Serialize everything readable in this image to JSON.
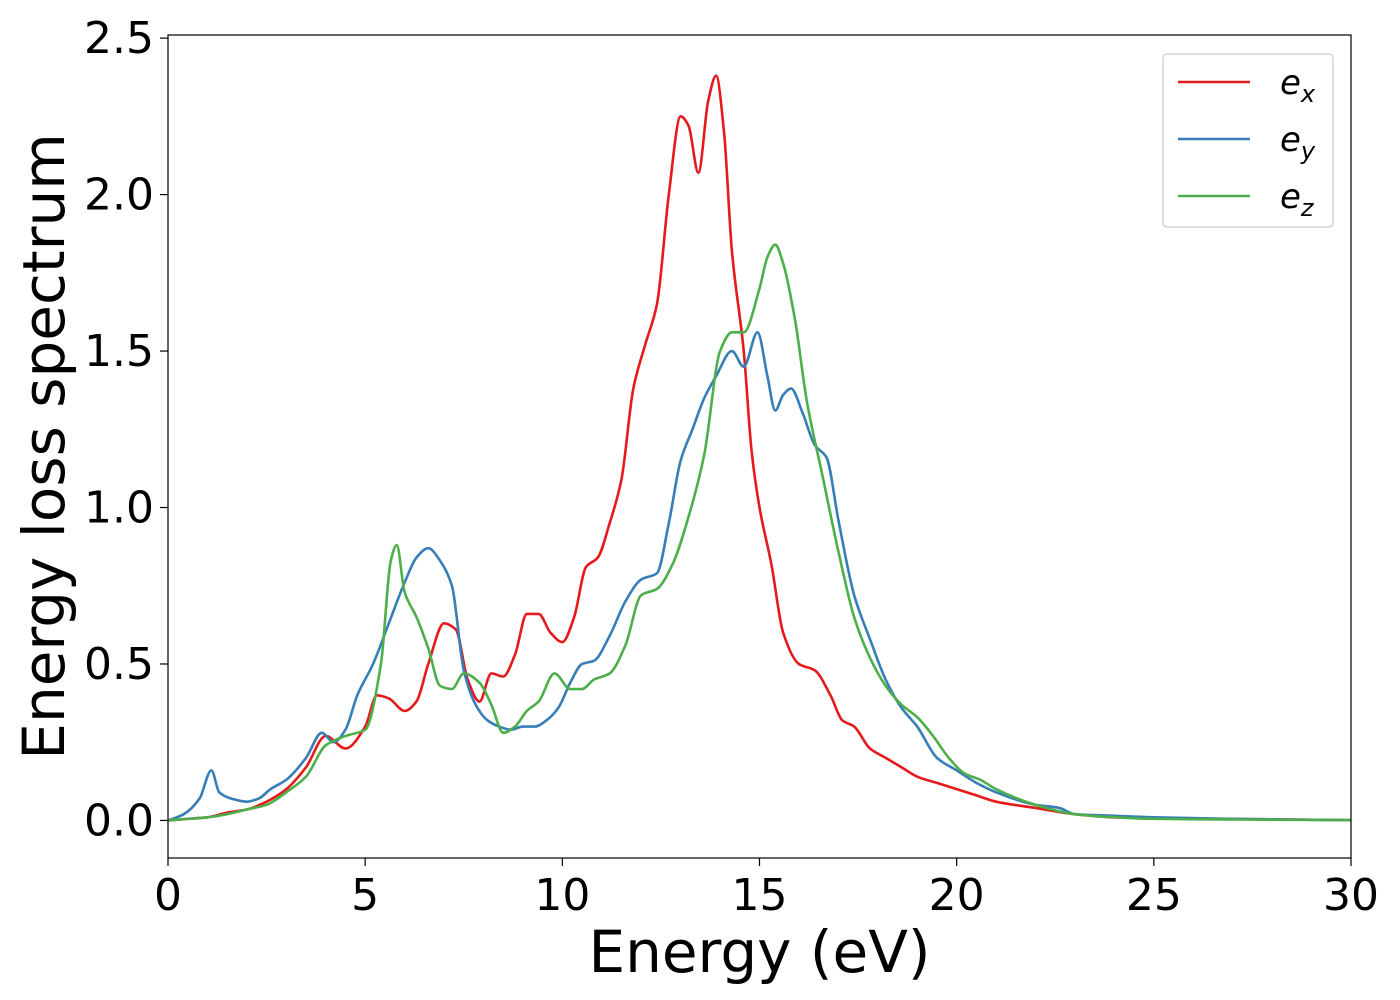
{
  "chart_data": {
    "type": "line",
    "xlabel": "Energy (eV)",
    "ylabel": "Energy loss spectrum",
    "xlim": [
      0,
      30
    ],
    "ylim": [
      -0.12,
      2.51
    ],
    "xticks": [
      "0",
      "5",
      "10",
      "15",
      "20",
      "25",
      "30"
    ],
    "yticks": [
      "0.0",
      "0.5",
      "1.0",
      "1.5",
      "2.0",
      "2.5"
    ],
    "grid": false,
    "legend_position": "top-right",
    "series": [
      {
        "name": "e_x",
        "label_base": "e",
        "label_sub": "x",
        "color": "#e41a1c",
        "x": [
          0,
          0.5,
          1,
          1.5,
          2,
          2.5,
          3,
          3.5,
          4,
          4.5,
          5,
          5.3,
          5.6,
          6,
          6.3,
          6.6,
          7,
          7.3,
          7.6,
          7.9,
          8.2,
          8.5,
          8.8,
          9.1,
          9.4,
          9.7,
          10,
          10.3,
          10.6,
          10.9,
          11.2,
          11.5,
          11.8,
          12.1,
          12.4,
          12.7,
          13,
          13.2,
          13.45,
          13.7,
          13.9,
          14.1,
          14.3,
          14.6,
          14.8,
          15,
          15.3,
          15.6,
          16,
          16.4,
          16.8,
          17.1,
          17.4,
          17.8,
          18.2,
          18.6,
          19,
          19.5,
          20,
          20.5,
          21,
          22,
          23,
          24,
          25,
          27,
          30
        ],
        "values": [
          0,
          0.005,
          0.01,
          0.025,
          0.035,
          0.06,
          0.1,
          0.17,
          0.27,
          0.23,
          0.3,
          0.4,
          0.39,
          0.35,
          0.38,
          0.5,
          0.63,
          0.61,
          0.45,
          0.38,
          0.47,
          0.46,
          0.53,
          0.66,
          0.66,
          0.6,
          0.57,
          0.65,
          0.81,
          0.84,
          0.95,
          1.09,
          1.38,
          1.52,
          1.65,
          2.0,
          2.25,
          2.22,
          2.07,
          2.3,
          2.38,
          2.2,
          1.82,
          1.5,
          1.18,
          1.0,
          0.82,
          0.6,
          0.5,
          0.48,
          0.4,
          0.32,
          0.3,
          0.23,
          0.2,
          0.17,
          0.14,
          0.12,
          0.1,
          0.08,
          0.06,
          0.04,
          0.02,
          0.01,
          0.007,
          0.005,
          0.001
        ]
      },
      {
        "name": "e_y",
        "label_base": "e",
        "label_sub": "y",
        "color": "#377eb8",
        "x": [
          0,
          0.4,
          0.8,
          1.1,
          1.3,
          1.6,
          2,
          2.3,
          2.6,
          3,
          3.5,
          3.9,
          4.2,
          4.5,
          4.8,
          5.2,
          5.6,
          6,
          6.3,
          6.6,
          6.9,
          7.2,
          7.5,
          7.8,
          8.1,
          8.4,
          8.7,
          9,
          9.3,
          9.6,
          9.9,
          10.2,
          10.5,
          10.8,
          11.2,
          11.6,
          12,
          12.4,
          12.7,
          13,
          13.3,
          13.6,
          13.9,
          14.3,
          14.6,
          14.95,
          15.2,
          15.4,
          15.6,
          15.8,
          16.1,
          16.4,
          16.7,
          17,
          17.4,
          17.8,
          18.2,
          18.6,
          19,
          19.5,
          20,
          20.5,
          21,
          22,
          22.6,
          23,
          24,
          25,
          27,
          30
        ],
        "values": [
          0,
          0.02,
          0.07,
          0.16,
          0.09,
          0.07,
          0.06,
          0.07,
          0.1,
          0.13,
          0.2,
          0.28,
          0.25,
          0.29,
          0.4,
          0.5,
          0.63,
          0.76,
          0.84,
          0.87,
          0.83,
          0.75,
          0.48,
          0.37,
          0.32,
          0.3,
          0.29,
          0.3,
          0.3,
          0.32,
          0.36,
          0.44,
          0.5,
          0.51,
          0.59,
          0.7,
          0.77,
          0.79,
          0.95,
          1.15,
          1.25,
          1.35,
          1.42,
          1.5,
          1.45,
          1.56,
          1.42,
          1.31,
          1.36,
          1.38,
          1.3,
          1.2,
          1.16,
          0.96,
          0.72,
          0.58,
          0.45,
          0.36,
          0.3,
          0.2,
          0.16,
          0.12,
          0.09,
          0.05,
          0.04,
          0.02,
          0.015,
          0.01,
          0.005,
          0.001
        ]
      },
      {
        "name": "e_z",
        "label_base": "e",
        "label_sub": "z",
        "color": "#4daf4a",
        "x": [
          0,
          0.5,
          1,
          1.5,
          2,
          2.5,
          3,
          3.5,
          4,
          4.5,
          5,
          5.4,
          5.65,
          5.8,
          6,
          6.3,
          6.6,
          6.9,
          7.2,
          7.5,
          7.9,
          8.2,
          8.5,
          8.8,
          9.1,
          9.4,
          9.8,
          10.2,
          10.5,
          10.8,
          11.2,
          11.6,
          12,
          12.4,
          12.8,
          13.2,
          13.6,
          14,
          14.3,
          14.6,
          15,
          15.2,
          15.4,
          15.6,
          15.9,
          16.2,
          16.6,
          17,
          17.4,
          17.8,
          18.2,
          18.6,
          19,
          19.4,
          19.8,
          20.2,
          20.6,
          21,
          22,
          23,
          24,
          25,
          27,
          30
        ],
        "values": [
          0,
          0.005,
          0.01,
          0.02,
          0.035,
          0.05,
          0.09,
          0.14,
          0.24,
          0.27,
          0.29,
          0.5,
          0.83,
          0.88,
          0.73,
          0.65,
          0.55,
          0.43,
          0.42,
          0.47,
          0.44,
          0.37,
          0.28,
          0.3,
          0.35,
          0.38,
          0.47,
          0.42,
          0.42,
          0.45,
          0.47,
          0.56,
          0.72,
          0.74,
          0.82,
          0.97,
          1.17,
          1.5,
          1.56,
          1.56,
          1.7,
          1.8,
          1.84,
          1.78,
          1.6,
          1.34,
          1.1,
          0.86,
          0.65,
          0.52,
          0.43,
          0.37,
          0.33,
          0.27,
          0.2,
          0.15,
          0.13,
          0.1,
          0.05,
          0.02,
          0.01,
          0.005,
          0.003,
          0.001
        ]
      }
    ]
  }
}
